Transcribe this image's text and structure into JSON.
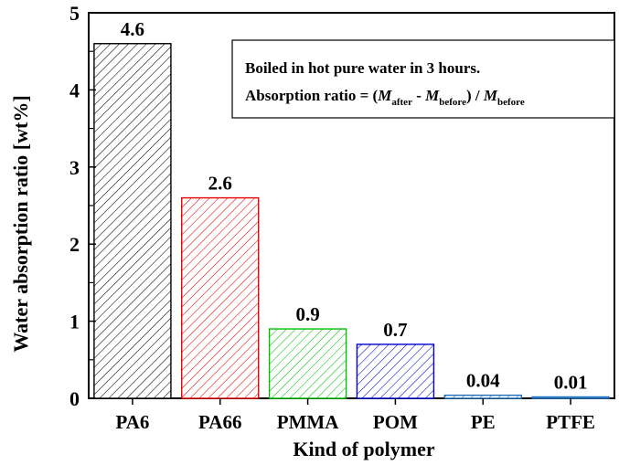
{
  "chart_data": {
    "type": "bar",
    "categories": [
      "PA6",
      "PA66",
      "PMMA",
      "POM",
      "PE",
      "PTFE"
    ],
    "values": [
      4.6,
      2.6,
      0.9,
      0.7,
      0.04,
      0.01
    ],
    "value_labels": [
      "4.6",
      "2.6",
      "0.9",
      "0.7",
      "0.04",
      "0.01"
    ],
    "bar_colors": [
      "#000000",
      "#e60000",
      "#00c000",
      "#0000cc",
      "#1f6fbf",
      "#1f6fbf"
    ],
    "ylabel": "Water absorption ratio [wt%]",
    "xlabel": "Kind of polymer",
    "ylim": [
      0,
      5
    ],
    "yticks": [
      "0",
      "1",
      "2",
      "3",
      "4",
      "5"
    ],
    "grid": false,
    "annotation": {
      "line1": "Boiled in hot pure water in 3 hours.",
      "line2_prefix": "Absorption ratio = (",
      "m_symbol": "M",
      "sub_after": "after",
      "minus": " - ",
      "sub_before": "before",
      "divide": ") / ",
      "placement": "top-right"
    }
  }
}
